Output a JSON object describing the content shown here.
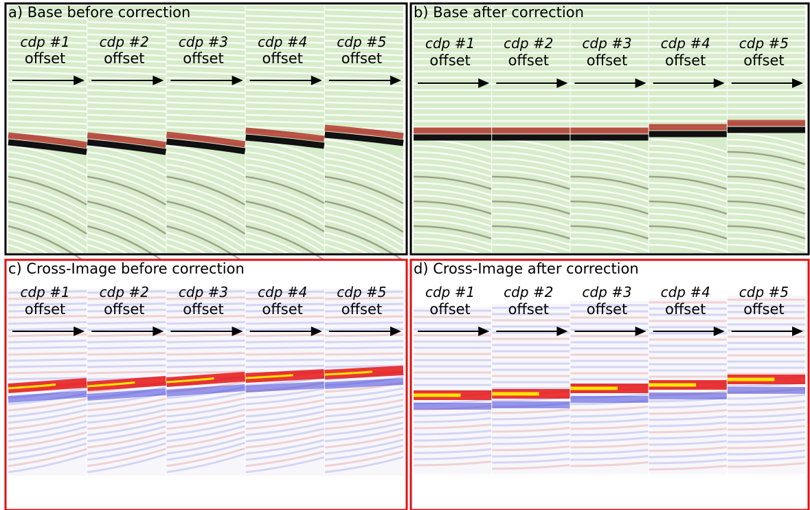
{
  "panels": [
    {
      "title": "a) Base before correction",
      "gathers": [
        {
          "label": "cdp #1",
          "axis": "offset"
        },
        {
          "label": "cdp #2",
          "axis": "offset"
        },
        {
          "label": "cdp #3",
          "axis": "offset"
        },
        {
          "label": "cdp #4",
          "axis": "offset"
        },
        {
          "label": "cdp #5",
          "axis": "offset"
        }
      ]
    },
    {
      "title": "b) Base after correction",
      "gathers": [
        {
          "label": "cdp #1",
          "axis": "offset"
        },
        {
          "label": "cdp #2",
          "axis": "offset"
        },
        {
          "label": "cdp #3",
          "axis": "offset"
        },
        {
          "label": "cdp #4",
          "axis": "offset"
        },
        {
          "label": "cdp #5",
          "axis": "offset"
        }
      ]
    },
    {
      "title": "c) Cross-Image before correction",
      "gathers": [
        {
          "label": "cdp #1",
          "axis": "offset"
        },
        {
          "label": "cdp #2",
          "axis": "offset"
        },
        {
          "label": "cdp #3",
          "axis": "offset"
        },
        {
          "label": "cdp #4",
          "axis": "offset"
        },
        {
          "label": "cdp #5",
          "axis": "offset"
        }
      ]
    },
    {
      "title": "d) Cross-Image after correction",
      "gathers": [
        {
          "label": "cdp #1",
          "axis": "offset"
        },
        {
          "label": "cdp #2",
          "axis": "offset"
        },
        {
          "label": "cdp #3",
          "axis": "offset"
        },
        {
          "label": "cdp #4",
          "axis": "offset"
        },
        {
          "label": "cdp #5",
          "axis": "offset"
        }
      ]
    }
  ]
}
